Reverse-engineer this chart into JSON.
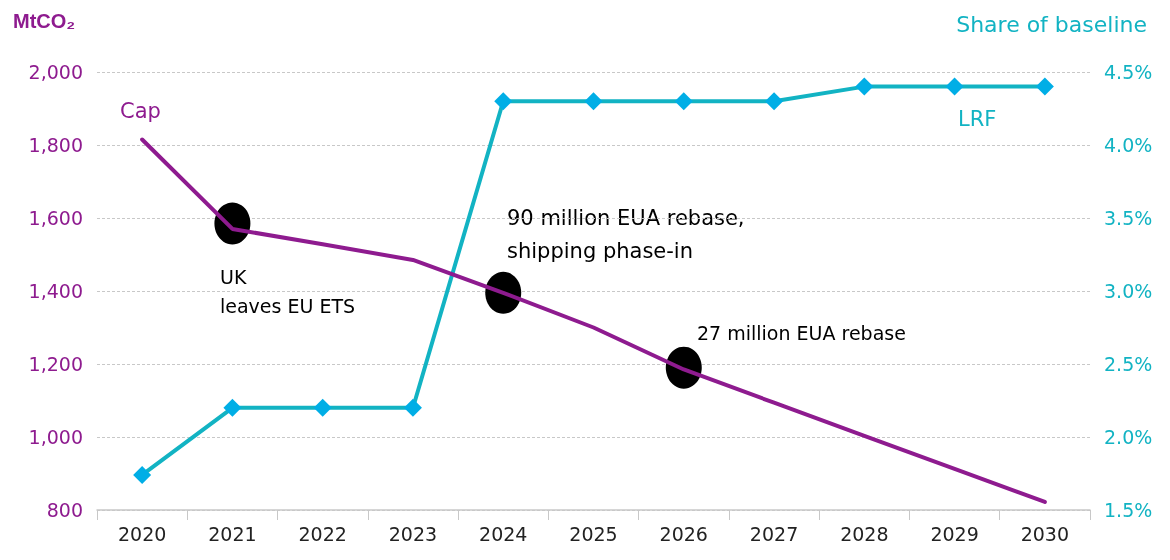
{
  "chart_data": {
    "type": "line",
    "categories": [
      "2020",
      "2021",
      "2022",
      "2023",
      "2024",
      "2025",
      "2026",
      "2027",
      "2028",
      "2029",
      "2030"
    ],
    "ylabel": "MtCO₂",
    "y2label": "Share of baseline",
    "ylim": [
      800,
      2000
    ],
    "yticks": [
      {
        "value": 800,
        "label": "800"
      },
      {
        "value": 1000,
        "label": "1,000"
      },
      {
        "value": 1200,
        "label": "1,200"
      },
      {
        "value": 1400,
        "label": "1,400"
      },
      {
        "value": 1600,
        "label": "1,600"
      },
      {
        "value": 1800,
        "label": "1,800"
      },
      {
        "value": 2000,
        "label": "2,000"
      }
    ],
    "y2lim": [
      1.5,
      4.5
    ],
    "y2ticks": [
      {
        "value": 1.5,
        "label": "1.5%"
      },
      {
        "value": 2,
        "label": "2.0%"
      },
      {
        "value": 2.5,
        "label": "2.5%"
      },
      {
        "value": 3,
        "label": "3.0%"
      },
      {
        "value": 3.5,
        "label": "3.5%"
      },
      {
        "value": 4,
        "label": "4.0%"
      },
      {
        "value": 4.5,
        "label": "4.5%"
      }
    ],
    "grid": "y",
    "series": [
      {
        "name": "Cap",
        "color": "#8e1b8f",
        "marker": "none",
        "values": [
          1815,
          1570,
          1528,
          1485,
          1395,
          1300,
          1185,
          1094,
          1003,
          913,
          822
        ]
      },
      {
        "name": "LRF",
        "color": "#12b3c3",
        "axis": "y2",
        "marker": "diamond",
        "values": [
          1.74,
          2.2,
          2.2,
          2.2,
          4.3,
          4.3,
          4.3,
          4.3,
          4.4,
          4.4,
          4.4
        ]
      },
      {
        "type": "scatter",
        "color": "#000000",
        "marker": "circle",
        "values": [
          null,
          1585,
          null,
          null,
          1395,
          null,
          1190,
          null,
          null,
          null,
          null
        ]
      }
    ],
    "annotations": [
      "UK\nleaves EU ETS",
      "90 million EUA rebase,\nshipping phase-in",
      "27 million EUA rebase"
    ]
  }
}
